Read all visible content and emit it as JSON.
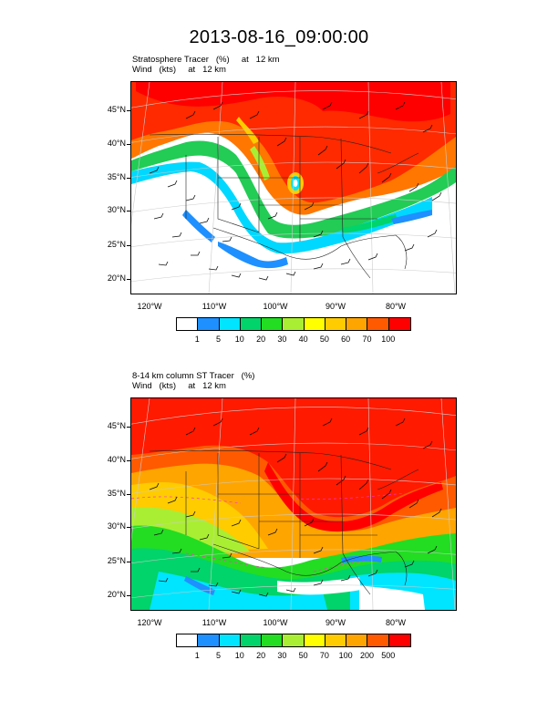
{
  "title": "2013-08-16_09:00:00",
  "panels": [
    {
      "subtitle_line1": "Stratosphere Tracer   (%)     at   12 km",
      "subtitle_line2": "Wind   (kts)     at   12 km",
      "lat_labels": [
        "45°N",
        "40°N",
        "35°N",
        "30°N",
        "25°N",
        "20°N"
      ],
      "lon_labels": [
        "120°W",
        "110°W",
        "100°W",
        "90°W",
        "80°W"
      ],
      "colorbar": {
        "colors": [
          "#ffffff",
          "#1e90ff",
          "#00e5ff",
          "#00d46a",
          "#22dd22",
          "#aaee33",
          "#ffff00",
          "#ffcc00",
          "#ffa500",
          "#ff5a00",
          "#ff0000"
        ],
        "labels": [
          "1",
          "5",
          "10",
          "20",
          "30",
          "40",
          "50",
          "60",
          "70",
          "100"
        ]
      }
    },
    {
      "subtitle_line1": "8-14 km column ST Tracer   (%)",
      "subtitle_line2": "Wind   (kts)     at   12 km",
      "lat_labels": [
        "45°N",
        "40°N",
        "35°N",
        "30°N",
        "25°N",
        "20°N"
      ],
      "lon_labels": [
        "120°W",
        "110°W",
        "100°W",
        "90°W",
        "80°W"
      ],
      "colorbar": {
        "colors": [
          "#ffffff",
          "#1e90ff",
          "#00e5ff",
          "#00d46a",
          "#22dd22",
          "#aaee33",
          "#ffff00",
          "#ffcc00",
          "#ffa500",
          "#ff5a00",
          "#ff0000"
        ],
        "labels": [
          "1",
          "5",
          "10",
          "20",
          "30",
          "50",
          "70",
          "100",
          "200",
          "500"
        ]
      }
    }
  ]
}
